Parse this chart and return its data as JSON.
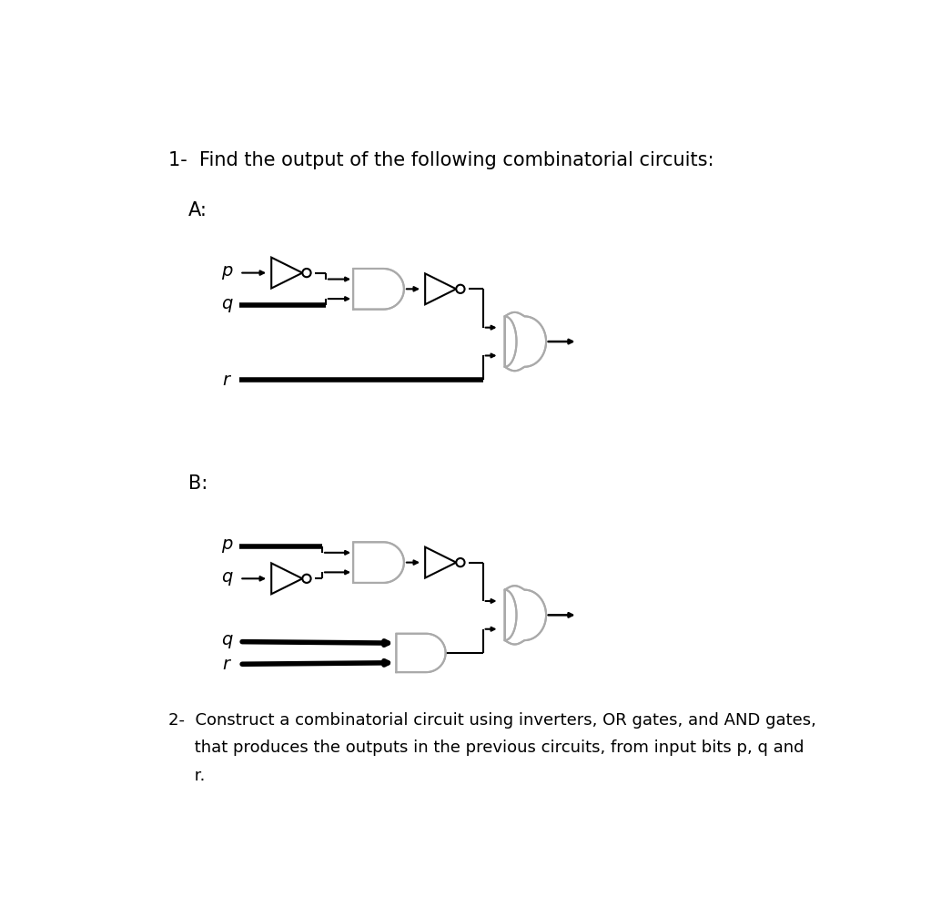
{
  "title1": "1-  Find the output of the following combinatorial circuits:",
  "label_A": "A:",
  "label_B": "B:",
  "title2_line1": "2-  Construct a combinatorial circuit using inverters, OR gates, and AND gates,",
  "title2_line2": "     that produces the outputs in the previous circuits, from input bits p, q and",
  "title2_line3": "     r.",
  "bg_color": "#ffffff",
  "black": "#000000",
  "gate_fc": "#f0f0f0",
  "gate_ec": "#aaaaaa",
  "thick_lw": 4.0,
  "thin_lw": 1.5,
  "arrow_lw": 1.5,
  "font_size_title": 15,
  "font_size_label": 15,
  "font_size_input": 14
}
